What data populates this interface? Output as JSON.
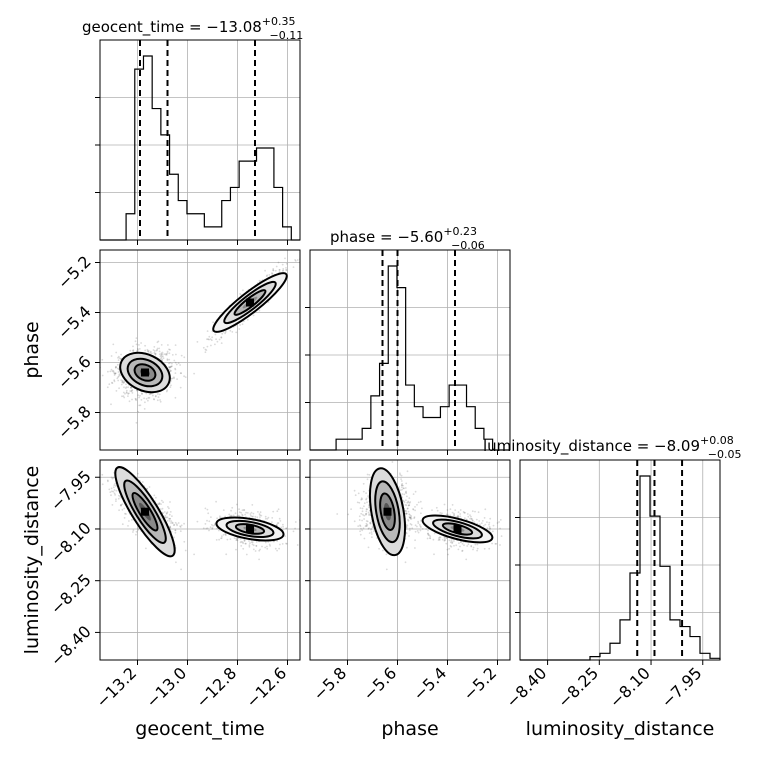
{
  "chart_data": {
    "type": "corner",
    "parameters": [
      "geocent_time",
      "phase",
      "luminosity_distance"
    ],
    "axis_labels": {
      "geocent_time": "geocent_time",
      "phase": "phase",
      "luminosity_distance": "luminosity_distance"
    },
    "ranges": {
      "geocent_time": [
        -13.35,
        -12.55
      ],
      "phase": [
        -5.95,
        -5.15
      ],
      "luminosity_distance": [
        -8.48,
        -7.9
      ]
    },
    "ticks": {
      "geocent_time": [
        -13.2,
        -13.0,
        -12.8,
        -12.6
      ],
      "phase": [
        -5.8,
        -5.6,
        -5.4,
        -5.2
      ],
      "luminosity_distance": [
        -8.4,
        -8.25,
        -8.1,
        -7.95
      ]
    },
    "tick_labels": {
      "geocent_time": [
        "−13.2",
        "−13.0",
        "−12.8",
        "−12.6"
      ],
      "phase": [
        "−5.8",
        "−5.6",
        "−5.4",
        "−5.2"
      ],
      "luminosity_distance": [
        "−8.40",
        "−8.25",
        "−8.10",
        "−7.95"
      ]
    },
    "titles": {
      "geocent_time": {
        "main": "geocent_time = −13.08",
        "upper": "+0.35",
        "lower": "−0.11"
      },
      "phase": {
        "main": "phase = −5.60",
        "upper": "+0.23",
        "lower": "−0.06"
      },
      "luminosity_distance": {
        "main": "luminosity_distance = −8.09",
        "upper": "+0.08",
        "lower": "−0.05"
      }
    },
    "quantiles": {
      "geocent_time": [
        -13.19,
        -13.08,
        -12.73
      ],
      "phase": [
        -5.66,
        -5.6,
        -5.37
      ],
      "luminosity_distance": [
        -8.14,
        -8.09,
        -8.01
      ]
    },
    "histograms": {
      "geocent_time": [
        0,
        0,
        0,
        2,
        13,
        14,
        10,
        8,
        5,
        3,
        2,
        2,
        1,
        1,
        3,
        4,
        6,
        6,
        7,
        7,
        4,
        1,
        0
      ],
      "phase": [
        0,
        0,
        0,
        1,
        1,
        1,
        2,
        5,
        8,
        17,
        15,
        6,
        4,
        3,
        3,
        4,
        6,
        6,
        4,
        2,
        1,
        0,
        0
      ],
      "luminosity_distance": [
        0,
        0,
        0,
        0,
        0,
        0,
        0,
        0.1,
        0.2,
        0.5,
        1.2,
        2.6,
        5.5,
        4.3,
        2.8,
        1.2,
        1.0,
        0.7,
        0.2,
        0.05
      ]
    },
    "modes": [
      {
        "weight": 0.6,
        "geocent_time": -13.17,
        "phase": -5.64,
        "luminosity_distance": -8.05
      },
      {
        "weight": 0.4,
        "geocent_time": -12.75,
        "phase": -5.36,
        "luminosity_distance": -8.1
      }
    ],
    "grid": true
  },
  "colors": {
    "contour_fill_low": "#f4f4f4",
    "contour_fill_high": "#1a1a1a",
    "line": "#000000",
    "grid": "#b0b0b0"
  }
}
